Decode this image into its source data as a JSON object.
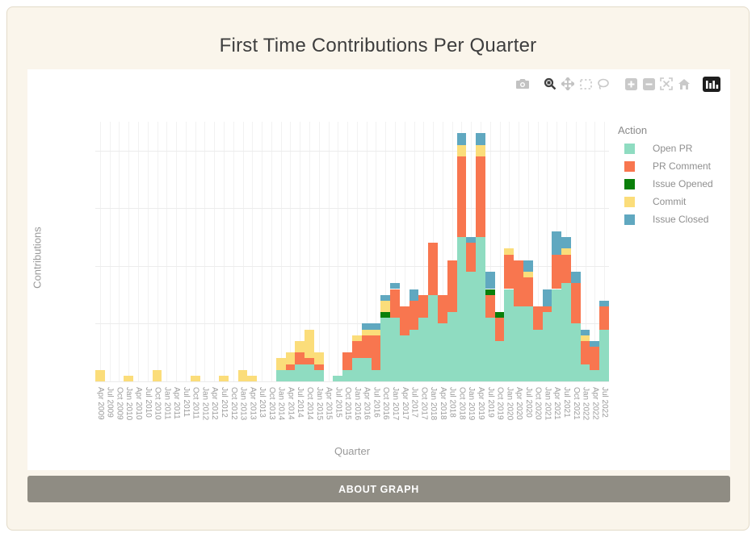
{
  "page": {
    "title": "First Time Contributions Per Quarter",
    "about_button_label": "ABOUT GRAPH"
  },
  "toolbar": {
    "icons": [
      "download-plot-camera",
      "zoom",
      "pan",
      "box-select",
      "lasso-select",
      "zoom-in",
      "zoom-out",
      "autoscale",
      "reset-axes",
      "plotly-logo"
    ]
  },
  "chart_data": {
    "type": "bar",
    "stacked": true,
    "title": "First Time Contributions Per Quarter",
    "xlabel": "Quarter",
    "ylabel": "Contributions",
    "legend_title": "Action",
    "legend_position": "right",
    "grid": true,
    "ylim": [
      0,
      45
    ],
    "yticks": [
      0,
      10,
      20,
      30,
      40
    ],
    "categories": [
      "Apr 2009",
      "Jul 2009",
      "Oct 2009",
      "Jan 2010",
      "Apr 2010",
      "Jul 2010",
      "Oct 2010",
      "Jan 2011",
      "Apr 2011",
      "Jul 2011",
      "Oct 2011",
      "Jan 2012",
      "Apr 2012",
      "Jul 2012",
      "Oct 2012",
      "Jan 2013",
      "Apr 2013",
      "Jul 2013",
      "Oct 2013",
      "Jan 2014",
      "Apr 2014",
      "Jul 2014",
      "Oct 2014",
      "Jan 2015",
      "Apr 2015",
      "Jul 2015",
      "Oct 2015",
      "Jan 2016",
      "Apr 2016",
      "Jul 2016",
      "Oct 2016",
      "Jan 2017",
      "Apr 2017",
      "Jul 2017",
      "Oct 2017",
      "Jan 2018",
      "Apr 2018",
      "Jul 2018",
      "Oct 2018",
      "Jan 2019",
      "Apr 2019",
      "Jul 2019",
      "Oct 2019",
      "Jan 2020",
      "Apr 2020",
      "Jul 2020",
      "Oct 2020",
      "Jan 2021",
      "Apr 2021",
      "Jul 2021",
      "Oct 2021",
      "Jan 2022",
      "Apr 2022",
      "Jul 2022"
    ],
    "series": [
      {
        "name": "Open PR",
        "color": "#8fdcc1",
        "values": [
          0,
          0,
          0,
          0,
          0,
          0,
          0,
          0,
          0,
          0,
          0,
          0,
          0,
          0,
          0,
          0,
          0,
          0,
          0,
          2,
          2,
          3,
          3,
          2,
          0,
          1,
          2,
          4,
          4,
          2,
          11,
          11,
          8,
          9,
          11,
          15,
          10,
          12,
          25,
          19,
          25,
          11,
          7,
          16,
          13,
          13,
          9,
          12,
          16,
          17,
          10,
          3,
          2,
          9
        ]
      },
      {
        "name": "PR Comment",
        "color": "#f8764f",
        "values": [
          0,
          0,
          0,
          0,
          0,
          0,
          0,
          0,
          0,
          0,
          0,
          0,
          0,
          0,
          0,
          0,
          0,
          0,
          0,
          0,
          1,
          2,
          1,
          1,
          0,
          0,
          3,
          3,
          4,
          6,
          0,
          5,
          5,
          5,
          4,
          9,
          5,
          9,
          14,
          5,
          14,
          4,
          4,
          6,
          8,
          5,
          4,
          1,
          6,
          5,
          7,
          4,
          4,
          4
        ]
      },
      {
        "name": "Issue Opened",
        "color": "#0a7f0a",
        "values": [
          0,
          0,
          0,
          0,
          0,
          0,
          0,
          0,
          0,
          0,
          0,
          0,
          0,
          0,
          0,
          0,
          0,
          0,
          0,
          0,
          0,
          0,
          0,
          0,
          0,
          0,
          0,
          0,
          0,
          0,
          1,
          0,
          0,
          0,
          0,
          0,
          0,
          0,
          0,
          0,
          0,
          1,
          1,
          0,
          0,
          0,
          0,
          0,
          0,
          0,
          0,
          0,
          0,
          0
        ]
      },
      {
        "name": "Commit",
        "color": "#fbdd7a",
        "values": [
          2,
          0,
          0,
          1,
          0,
          0,
          2,
          0,
          0,
          0,
          1,
          0,
          0,
          1,
          0,
          2,
          1,
          0,
          0,
          2,
          2,
          2,
          5,
          2,
          0,
          0,
          0,
          1,
          1,
          1,
          2,
          0,
          0,
          0,
          0,
          0,
          0,
          0,
          2,
          0,
          2,
          0,
          0,
          1,
          0,
          1,
          0,
          0,
          0,
          1,
          0,
          1,
          0,
          0
        ]
      },
      {
        "name": "Issue Closed",
        "color": "#60a8c0",
        "values": [
          0,
          0,
          0,
          0,
          0,
          0,
          0,
          0,
          0,
          0,
          0,
          0,
          0,
          0,
          0,
          0,
          0,
          0,
          0,
          0,
          0,
          0,
          0,
          0,
          0,
          0,
          0,
          0,
          1,
          1,
          1,
          1,
          0,
          2,
          0,
          0,
          0,
          0,
          2,
          1,
          2,
          3,
          0,
          0,
          0,
          2,
          0,
          3,
          4,
          2,
          2,
          1,
          1,
          1
        ]
      }
    ]
  }
}
